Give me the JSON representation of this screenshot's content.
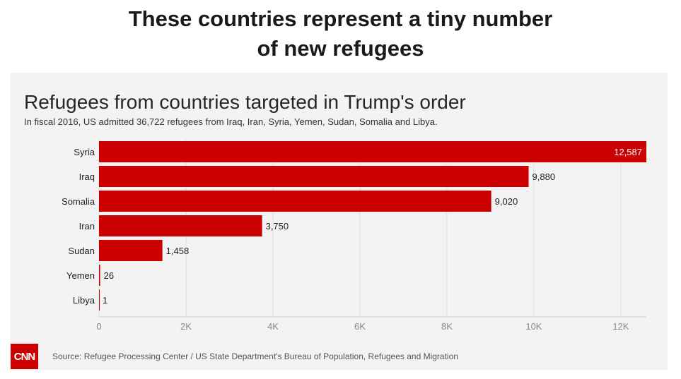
{
  "headline": {
    "line1": "These countries represent a tiny number",
    "line2": "of new refugees"
  },
  "brand": {
    "logo_text": "CNN",
    "color": "#cc0000"
  },
  "source": "Source: Refugee Processing Center / US State Department's Bureau of Population, Refugees and Migration",
  "colors": {
    "bar": "#cc0000",
    "panel": "#f3f3f3",
    "grid": "#dddddd"
  },
  "chart_data": {
    "type": "bar",
    "orientation": "horizontal",
    "title": "Refugees from countries targeted in Trump's order",
    "subtitle": "In fiscal 2016, US admitted 36,722 refugees from Iraq, Iran, Syria, Yemen, Sudan, Somalia and Libya.",
    "categories": [
      "Syria",
      "Iraq",
      "Somalia",
      "Iran",
      "Sudan",
      "Yemen",
      "Libya"
    ],
    "values": [
      12587,
      9880,
      9020,
      3750,
      1458,
      26,
      1
    ],
    "value_labels": [
      "12,587",
      "9,880",
      "9,020",
      "3,750",
      "1,458",
      "26",
      "1"
    ],
    "xlim": [
      0,
      12587
    ],
    "xticks": [
      0,
      2000,
      4000,
      6000,
      8000,
      10000,
      12000
    ],
    "xtick_labels": [
      "0",
      "2K",
      "4K",
      "6K",
      "8K",
      "10K",
      "12K"
    ],
    "grid": true,
    "xlabel": "",
    "ylabel": ""
  }
}
